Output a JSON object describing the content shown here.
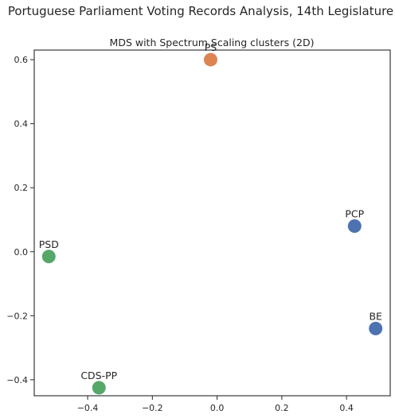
{
  "figure": {
    "suptitle": "Portuguese Parliament Voting Records Analysis, 14th Legislature"
  },
  "chart_data": {
    "type": "scatter",
    "title": "MDS with Spectrum Scaling clusters (2D)",
    "xlabel": "",
    "ylabel": "",
    "xlim": [
      -0.565,
      0.535
    ],
    "ylim": [
      -0.45,
      0.63
    ],
    "grid": false,
    "legend": "none",
    "x_ticks": [
      -0.4,
      -0.2,
      0.0,
      0.2,
      0.4
    ],
    "x_tick_labels": [
      "−0.4",
      "−0.2",
      "0.0",
      "0.2",
      "0.4"
    ],
    "y_ticks": [
      -0.4,
      -0.2,
      0.0,
      0.2,
      0.4,
      0.6
    ],
    "y_tick_labels": [
      "−0.4",
      "−0.2",
      "0.0",
      "0.2",
      "0.4",
      "0.6"
    ],
    "cluster_colors": {
      "0": "#4c72b0",
      "1": "#dd8452",
      "2": "#55a868"
    },
    "points": [
      {
        "label": "PS",
        "x": -0.02,
        "y": 0.6,
        "cluster": 1
      },
      {
        "label": "PCP",
        "x": 0.425,
        "y": 0.08,
        "cluster": 0
      },
      {
        "label": "BE",
        "x": 0.49,
        "y": -0.24,
        "cluster": 0
      },
      {
        "label": "PSD",
        "x": -0.52,
        "y": -0.015,
        "cluster": 2
      },
      {
        "label": "CDS-PP",
        "x": -0.365,
        "y": -0.425,
        "cluster": 2
      }
    ]
  }
}
